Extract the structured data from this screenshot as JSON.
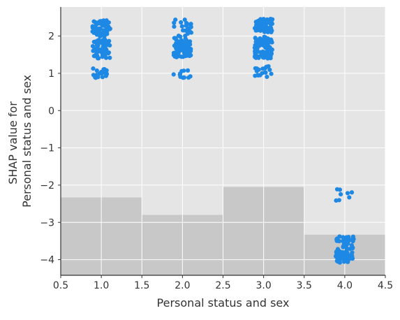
{
  "chart_data": {
    "type": "scatter",
    "subtype": "shap-dependence-strip",
    "xlabel": "Personal status and sex",
    "ylabel_lines": [
      "SHAP value for",
      "Personal status and sex"
    ],
    "xlim": [
      0.5,
      4.5
    ],
    "ylim": [
      -4.42,
      2.78
    ],
    "xticks": [
      0.5,
      1.0,
      1.5,
      2.0,
      2.5,
      3.0,
      3.5,
      4.0,
      4.5
    ],
    "xtick_labels": [
      "0.5",
      "1.0",
      "1.5",
      "2.0",
      "2.5",
      "3.0",
      "3.5",
      "4.0",
      "4.5"
    ],
    "yticks": [
      2,
      1,
      0,
      -1,
      -2,
      -3,
      -4
    ],
    "ytick_labels": [
      "2",
      "1",
      "0",
      "−1",
      "−2",
      "−3",
      "−4"
    ],
    "grid": true,
    "background_color": "#e5e5e5",
    "point_color": "#1e88e5",
    "histogram_color": "#c8c8c8",
    "histogram": {
      "bins": [
        [
          0.5,
          1.5
        ],
        [
          1.5,
          2.5
        ],
        [
          2.5,
          3.5
        ],
        [
          3.5,
          4.5
        ]
      ],
      "heights": [
        -2.33,
        -2.8,
        -2.05,
        -3.33
      ]
    },
    "groups": [
      {
        "x": 1.0,
        "clusters": [
          {
            "center": 2.2,
            "spread": 0.22,
            "count": 60
          },
          {
            "center": 1.65,
            "spread": 0.25,
            "count": 70
          },
          {
            "center": 1.0,
            "spread": 0.13,
            "count": 20
          }
        ]
      },
      {
        "x": 2.0,
        "clusters": [
          {
            "center": 2.15,
            "spread": 0.3,
            "count": 30
          },
          {
            "center": 1.65,
            "spread": 0.22,
            "count": 60
          },
          {
            "center": 1.0,
            "spread": 0.12,
            "count": 12
          }
        ]
      },
      {
        "x": 3.0,
        "clusters": [
          {
            "center": 2.28,
            "spread": 0.18,
            "count": 80
          },
          {
            "center": 1.7,
            "spread": 0.3,
            "count": 90
          },
          {
            "center": 1.05,
            "spread": 0.15,
            "count": 18
          }
        ]
      },
      {
        "x": 4.0,
        "clusters": [
          {
            "center": -2.25,
            "spread": 0.18,
            "count": 8
          },
          {
            "center": -3.55,
            "spread": 0.18,
            "count": 35
          },
          {
            "center": -3.92,
            "spread": 0.16,
            "count": 50
          }
        ]
      }
    ],
    "jitter_halfwidth": 0.11
  }
}
